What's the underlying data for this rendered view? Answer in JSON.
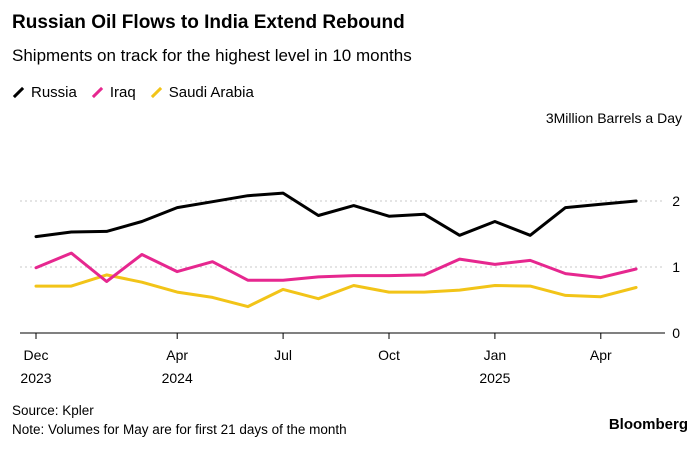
{
  "title": "Russian Oil Flows to India Extend Rebound",
  "subtitle": "Shipments on track for the highest level in 10 months",
  "source": "Source: Kpler",
  "note": "Note: Volumes for May are for first 21 days of the month",
  "brand": "Bloomberg",
  "chart_data": {
    "type": "line",
    "ylabel": "Million Barrels a Day",
    "ylim": [
      0,
      2.5
    ],
    "yticks": [
      {
        "value": 0,
        "label": "0"
      },
      {
        "value": 1,
        "label": "1"
      },
      {
        "value": 2,
        "label": "2"
      },
      {
        "value": 3,
        "label": "3"
      }
    ],
    "xlim": [
      0,
      17.4
    ],
    "xticks": [
      {
        "x": 0,
        "label": "Dec",
        "year": "2023"
      },
      {
        "x": 4,
        "label": "Apr",
        "year": "2024"
      },
      {
        "x": 7,
        "label": "Jul",
        "year": ""
      },
      {
        "x": 10,
        "label": "Oct",
        "year": ""
      },
      {
        "x": 13,
        "label": "Jan",
        "year": "2025"
      },
      {
        "x": 16,
        "label": "Apr",
        "year": ""
      }
    ],
    "series": [
      {
        "name": "Russia",
        "color": "#000000",
        "x": [
          0,
          1,
          2,
          3,
          4,
          5,
          6,
          7,
          8,
          9,
          10,
          11,
          12,
          13,
          14,
          15,
          16,
          17
        ],
        "values": [
          1.46,
          1.53,
          1.54,
          1.69,
          1.9,
          1.99,
          2.08,
          2.12,
          1.78,
          1.93,
          1.77,
          1.8,
          1.48,
          1.69,
          1.48,
          1.9,
          1.95,
          2.0
        ]
      },
      {
        "name": "Iraq",
        "color": "#e6278f",
        "x": [
          0,
          1,
          2,
          3,
          4,
          5,
          6,
          7,
          8,
          9,
          10,
          11,
          12,
          13,
          14,
          15,
          16,
          17
        ],
        "values": [
          0.99,
          1.21,
          0.78,
          1.19,
          0.93,
          1.08,
          0.8,
          0.8,
          0.85,
          0.87,
          0.87,
          0.88,
          1.12,
          1.04,
          1.1,
          0.9,
          0.84,
          0.97
        ]
      },
      {
        "name": "Saudi Arabia",
        "color": "#f2c418",
        "x": [
          0,
          1,
          2,
          3,
          4,
          5,
          6,
          7,
          8,
          9,
          10,
          11,
          12,
          13,
          14,
          15,
          16,
          17
        ],
        "values": [
          0.71,
          0.71,
          0.88,
          0.77,
          0.62,
          0.54,
          0.4,
          0.66,
          0.52,
          0.72,
          0.62,
          0.62,
          0.65,
          0.72,
          0.71,
          0.57,
          0.55,
          0.69
        ]
      }
    ]
  }
}
